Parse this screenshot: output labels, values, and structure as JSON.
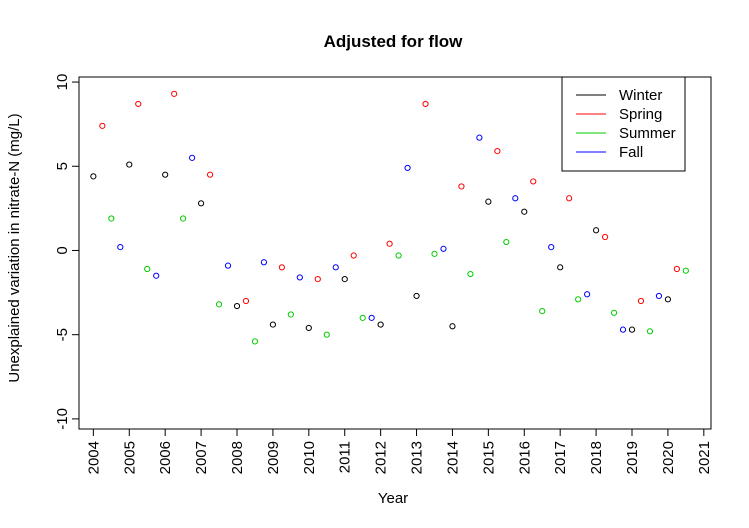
{
  "chart_data": {
    "type": "scatter",
    "title": "Adjusted for flow",
    "xlabel": "Year",
    "ylabel": "Unexplained variation in nitrate-N (mg/L)",
    "xlim": [
      2003.6,
      2021.2
    ],
    "ylim": [
      -10.6,
      10.3
    ],
    "x_ticks": [
      2004,
      2005,
      2006,
      2007,
      2008,
      2009,
      2010,
      2011,
      2012,
      2013,
      2014,
      2015,
      2016,
      2017,
      2018,
      2019,
      2020,
      2021
    ],
    "x_tick_labels": [
      "2004",
      "2005",
      "2006",
      "2007",
      "2008",
      "2009",
      "2010",
      "2011",
      "2012",
      "2013",
      "2014",
      "2015",
      "2016",
      "2017",
      "2018",
      "2019",
      "2020",
      "2021"
    ],
    "y_ticks": [
      10,
      5,
      0,
      -5,
      -10
    ],
    "y_tick_labels": [
      "10",
      "5",
      "0",
      "-5",
      "-10"
    ],
    "grid": false,
    "legend_position": "top-right",
    "series": [
      {
        "name": "Winter",
        "color": "#000000",
        "points": [
          [
            2004.0,
            4.4
          ],
          [
            2005.0,
            5.1
          ],
          [
            2006.0,
            4.5
          ],
          [
            2007.0,
            2.8
          ],
          [
            2008.0,
            -3.3
          ],
          [
            2009.0,
            -4.4
          ],
          [
            2010.0,
            -4.6
          ],
          [
            2011.0,
            -1.7
          ],
          [
            2012.0,
            -4.4
          ],
          [
            2013.0,
            -2.7
          ],
          [
            2014.0,
            -4.5
          ],
          [
            2015.0,
            2.9
          ],
          [
            2016.0,
            2.3
          ],
          [
            2017.0,
            -1.0
          ],
          [
            2018.0,
            1.2
          ],
          [
            2019.0,
            -4.7
          ],
          [
            2020.0,
            -2.9
          ]
        ]
      },
      {
        "name": "Spring",
        "color": "#ff0000",
        "points": [
          [
            2004.25,
            7.4
          ],
          [
            2005.25,
            8.7
          ],
          [
            2006.25,
            9.3
          ],
          [
            2007.25,
            4.5
          ],
          [
            2008.25,
            -3.0
          ],
          [
            2009.25,
            -1.0
          ],
          [
            2010.25,
            -1.7
          ],
          [
            2011.25,
            -0.3
          ],
          [
            2012.25,
            0.4
          ],
          [
            2013.25,
            8.7
          ],
          [
            2014.25,
            3.8
          ],
          [
            2015.25,
            5.9
          ],
          [
            2016.25,
            4.1
          ],
          [
            2017.25,
            3.1
          ],
          [
            2018.25,
            0.8
          ],
          [
            2019.25,
            -3.0
          ],
          [
            2020.25,
            -1.1
          ]
        ]
      },
      {
        "name": "Summer",
        "color": "#00cc00",
        "points": [
          [
            2004.5,
            1.9
          ],
          [
            2005.5,
            -1.1
          ],
          [
            2006.5,
            1.9
          ],
          [
            2007.5,
            -3.2
          ],
          [
            2008.5,
            -5.4
          ],
          [
            2009.5,
            -3.8
          ],
          [
            2010.5,
            -5.0
          ],
          [
            2011.5,
            -4.0
          ],
          [
            2012.5,
            -0.3
          ],
          [
            2013.5,
            -0.2
          ],
          [
            2014.5,
            -1.4
          ],
          [
            2015.5,
            0.5
          ],
          [
            2016.5,
            -3.6
          ],
          [
            2017.5,
            -2.9
          ],
          [
            2018.5,
            -3.7
          ],
          [
            2019.5,
            -4.8
          ],
          [
            2020.5,
            -1.2
          ]
        ]
      },
      {
        "name": "Fall",
        "color": "#0000ff",
        "points": [
          [
            2004.75,
            0.2
          ],
          [
            2005.75,
            -1.5
          ],
          [
            2006.75,
            5.5
          ],
          [
            2007.75,
            -0.9
          ],
          [
            2008.75,
            -0.7
          ],
          [
            2009.75,
            -1.6
          ],
          [
            2010.75,
            -1.0
          ],
          [
            2011.75,
            -4.0
          ],
          [
            2012.75,
            4.9
          ],
          [
            2013.75,
            0.1
          ],
          [
            2014.75,
            6.7
          ],
          [
            2015.75,
            3.1
          ],
          [
            2016.75,
            0.2
          ],
          [
            2017.75,
            -2.6
          ],
          [
            2018.75,
            -4.7
          ],
          [
            2019.75,
            -2.7
          ]
        ]
      }
    ]
  }
}
